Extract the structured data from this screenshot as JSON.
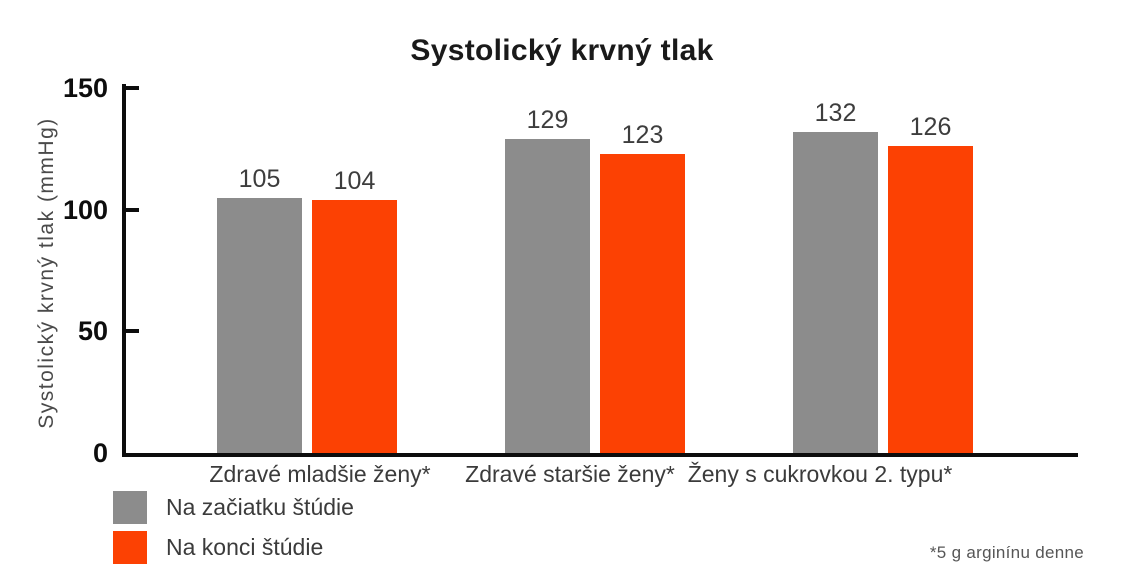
{
  "chart_data": {
    "type": "bar",
    "title": "Systolický krvný tlak",
    "ylabel": "Systolický krvný tlak (mmHg)",
    "xlabel": "",
    "categories": [
      "Zdravé mladšie ženy*",
      "Zdravé staršie ženy*",
      "Ženy s cukrovkou 2. typu*"
    ],
    "series": [
      {
        "name": "Na začiatku štúdie",
        "color": "#8C8C8C",
        "values": [
          105,
          129,
          132
        ]
      },
      {
        "name": "Na konci štúdie",
        "color": "#FC4103",
        "values": [
          104,
          123,
          126
        ]
      }
    ],
    "ylim": [
      0,
      150
    ],
    "yticks": [
      0,
      50,
      100,
      150
    ],
    "grid": false,
    "legend_position": "bottom-left",
    "footnote": "*5 g arginínu denne"
  },
  "colors": {
    "axis": "#0d0d0d",
    "title_text": "#1a1a1a",
    "label_text": "#3b3b3b",
    "footnote_text": "#565656",
    "background": "#ffffff"
  }
}
